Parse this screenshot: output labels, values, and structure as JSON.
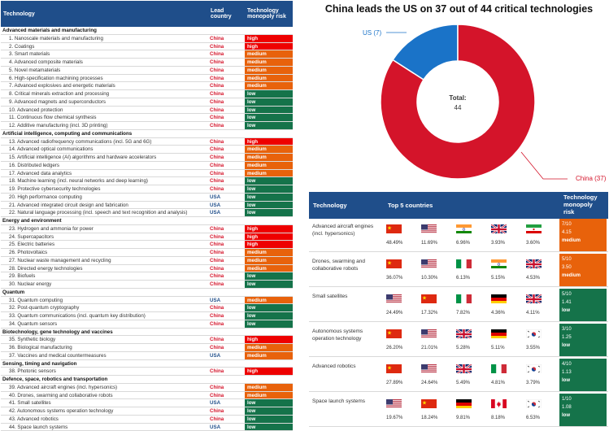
{
  "left_table": {
    "headers": [
      "Technology",
      "Lead country",
      "Technology monopoly risk"
    ],
    "sections": [
      {
        "name": "Advanced materials and manufacturing",
        "rows": [
          [
            "1. Nanoscale materials and manufacturing",
            "China",
            "high"
          ],
          [
            "2. Coatings",
            "China",
            "high"
          ],
          [
            "3. Smart materials",
            "China",
            "medium"
          ],
          [
            "4. Advanced composite materials",
            "China",
            "medium"
          ],
          [
            "5. Novel metamaterials",
            "China",
            "medium"
          ],
          [
            "6. High-specification machining processes",
            "China",
            "medium"
          ],
          [
            "7. Advanced explosives and energetic materials",
            "China",
            "medium"
          ],
          [
            "8. Critical minerals extraction and processing",
            "China",
            "low"
          ],
          [
            "9. Advanced magnets and superconductors",
            "China",
            "low"
          ],
          [
            "10. Advanced protection",
            "China",
            "low"
          ],
          [
            "11. Continuous flow chemical synthesis",
            "China",
            "low"
          ],
          [
            "12. Additive manufacturing (incl. 3D printing)",
            "China",
            "low"
          ]
        ]
      },
      {
        "name": "Artificial intelligence, computing and communications",
        "rows": [
          [
            "13. Advanced radiofrequency communications (incl. 5G and 6G)",
            "China",
            "high"
          ],
          [
            "14. Advanced optical communications",
            "China",
            "medium"
          ],
          [
            "15. Artificial intelligence (AI) algorithms and hardware accelerators",
            "China",
            "medium"
          ],
          [
            "16. Distributed ledgers",
            "China",
            "medium"
          ],
          [
            "17. Advanced data analytics",
            "China",
            "medium"
          ],
          [
            "18. Machine learning (incl. neural networks and deep learning)",
            "China",
            "low"
          ],
          [
            "19. Protective cybersecurity technologies",
            "China",
            "low"
          ],
          [
            "20. High performance computing",
            "USA",
            "low"
          ],
          [
            "21. Advanced integrated circuit design and fabrication",
            "USA",
            "low"
          ],
          [
            "22. Natural language processing (incl. speech and text recognition and analysis)",
            "USA",
            "low"
          ]
        ]
      },
      {
        "name": "Energy and environment",
        "rows": [
          [
            "23. Hydrogen and ammonia for power",
            "China",
            "high"
          ],
          [
            "24. Supercapacitors",
            "China",
            "high"
          ],
          [
            "25. Electric batteries",
            "China",
            "high"
          ],
          [
            "26. Photovoltaics",
            "China",
            "medium"
          ],
          [
            "27. Nuclear waste management and recycling",
            "China",
            "medium"
          ],
          [
            "28. Directed energy technologies",
            "China",
            "medium"
          ],
          [
            "29. Biofuels",
            "China",
            "low"
          ],
          [
            "30. Nuclear energy",
            "China",
            "low"
          ]
        ]
      },
      {
        "name": "Quantum",
        "rows": [
          [
            "31. Quantum computing",
            "USA",
            "medium"
          ],
          [
            "32. Post-quantum cryptography",
            "China",
            "low"
          ],
          [
            "33. Quantum communications (incl. quantum key distribution)",
            "China",
            "low"
          ],
          [
            "34. Quantum sensors",
            "China",
            "low"
          ]
        ]
      },
      {
        "name": "Biotechnology, gene technology and vaccines",
        "rows": [
          [
            "35. Synthetic biology",
            "China",
            "high"
          ],
          [
            "36. Biological manufacturing",
            "China",
            "medium"
          ],
          [
            "37. Vaccines and medical countermeasures",
            "USA",
            "medium"
          ]
        ]
      },
      {
        "name": "Sensing, timing and navigation",
        "rows": [
          [
            "38. Photonic sensors",
            "China",
            "high"
          ]
        ]
      },
      {
        "name": "Defence, space, robotics and transportation",
        "rows": [
          [
            "39. Advanced aircraft engines (incl. hypersonics)",
            "China",
            "medium"
          ],
          [
            "40. Drones, swarming and collaborative robots",
            "China",
            "medium"
          ],
          [
            "41. Small satellites",
            "USA",
            "low"
          ],
          [
            "42. Autonomous systems operation technology",
            "China",
            "low"
          ],
          [
            "43. Advanced robotics",
            "China",
            "low"
          ],
          [
            "44. Space launch systems",
            "USA",
            "low"
          ]
        ]
      }
    ]
  },
  "chart_data": {
    "type": "pie",
    "title": "China leads the US on 37 out of 44 critical technologies",
    "categories": [
      "China",
      "US"
    ],
    "values": [
      37,
      7
    ],
    "labels": [
      "China (37)",
      "US (7)"
    ],
    "center_label": "Total:",
    "center_value": "44",
    "colors": [
      "#d4142a",
      "#1a73c8"
    ]
  },
  "top5_table": {
    "headers": [
      "Technology",
      "Top 5 countries",
      "Technology monopoly risk"
    ],
    "rows": [
      {
        "name": "Advanced aircraft engines (incl. hypersonics)",
        "countries": [
          [
            "cn",
            "48.49%"
          ],
          [
            "us",
            "11.69%"
          ],
          [
            "in",
            "6.96%"
          ],
          [
            "uk",
            "3.93%"
          ],
          [
            "ir",
            "3.60%"
          ]
        ],
        "score": "7/10",
        "ratio": "4.15",
        "level": "medium"
      },
      {
        "name": "Drones, swarming and collaborative robots",
        "countries": [
          [
            "cn",
            "36.07%"
          ],
          [
            "us",
            "10.30%"
          ],
          [
            "it",
            "6.13%"
          ],
          [
            "in",
            "5.15%"
          ],
          [
            "uk",
            "4.53%"
          ]
        ],
        "score": "5/10",
        "ratio": "3.50",
        "level": "medium"
      },
      {
        "name": "Small satellites",
        "countries": [
          [
            "us",
            "24.49%"
          ],
          [
            "cn",
            "17.32%"
          ],
          [
            "it",
            "7.82%"
          ],
          [
            "de",
            "4.36%"
          ],
          [
            "uk",
            "4.11%"
          ]
        ],
        "score": "5/10",
        "ratio": "1.41",
        "level": "low"
      },
      {
        "name": "Autonomous systems operation technology",
        "countries": [
          [
            "cn",
            "26.20%"
          ],
          [
            "us",
            "21.01%"
          ],
          [
            "uk",
            "5.28%"
          ],
          [
            "de",
            "5.11%"
          ],
          [
            "kr",
            "3.55%"
          ]
        ],
        "score": "3/10",
        "ratio": "1.25",
        "level": "low"
      },
      {
        "name": "Advanced robotics",
        "countries": [
          [
            "cn",
            "27.89%"
          ],
          [
            "us",
            "24.64%"
          ],
          [
            "uk",
            "5.49%"
          ],
          [
            "it",
            "4.81%"
          ],
          [
            "kr",
            "3.79%"
          ]
        ],
        "score": "4/10",
        "ratio": "1.13",
        "level": "low"
      },
      {
        "name": "Space launch systems",
        "countries": [
          [
            "us",
            "19.67%"
          ],
          [
            "cn",
            "18.24%"
          ],
          [
            "de",
            "9.81%"
          ],
          [
            "ca",
            "8.18%"
          ],
          [
            "kr",
            "6.53%"
          ]
        ],
        "score": "1/10",
        "ratio": "1.08",
        "level": "low"
      }
    ]
  },
  "colors": {
    "header": "#1f4e8a",
    "high": "#ee0000",
    "medium": "#e8620b",
    "low": "#15734a",
    "china": "#d4142a",
    "us": "#1a73c8"
  }
}
